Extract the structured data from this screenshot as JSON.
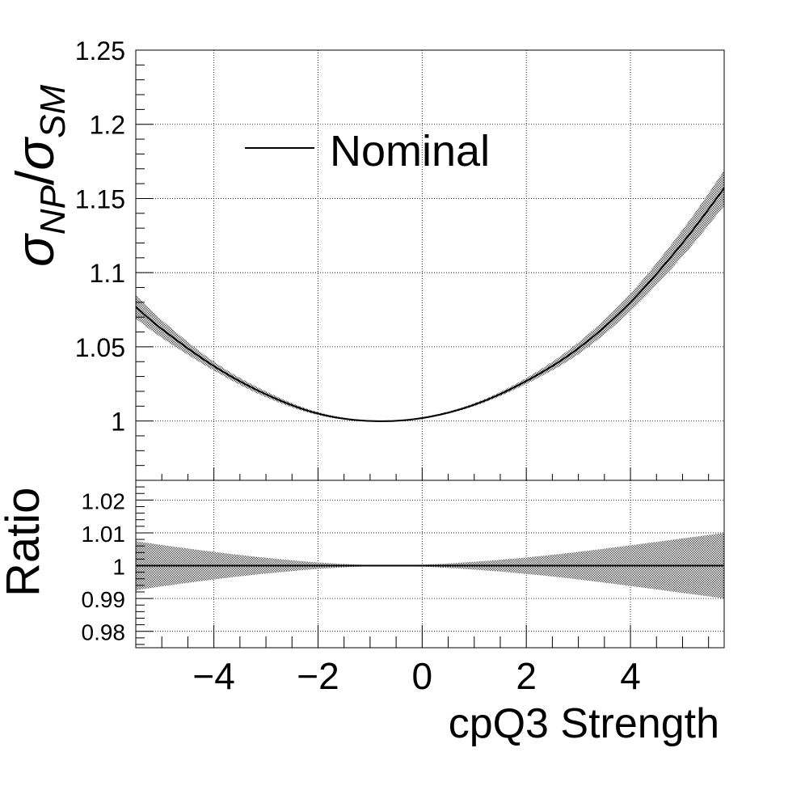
{
  "chart_data": [
    {
      "type": "line",
      "panel": "main",
      "ylabel": {
        "main": "σ",
        "sub": "NP",
        "slash": "/",
        "main2": "σ",
        "sub2": "SM"
      },
      "xlim": [
        -5.5,
        5.8
      ],
      "ylim": [
        0.96,
        1.25
      ],
      "yticks": [
        1,
        1.05,
        1.1,
        1.15,
        1.2,
        1.25
      ],
      "ytick_labels": [
        "1",
        "1.05",
        "1.1",
        "1.15",
        "1.2",
        "1.25"
      ],
      "grid": true,
      "legend": {
        "placement": "top-left",
        "entries": [
          "Nominal"
        ]
      },
      "series": [
        {
          "name": "Nominal",
          "x": [
            -5.5,
            -5,
            -4,
            -3,
            -2,
            -1,
            0,
            1,
            2,
            3,
            4,
            5,
            5.8
          ],
          "y": [
            1.077,
            1.062,
            1.037,
            1.018,
            1.005,
            1.0,
            1.002,
            1.011,
            1.027,
            1.049,
            1.08,
            1.12,
            1.157
          ],
          "band_halfwidth": [
            0.008,
            0.006,
            0.003,
            0.002,
            0.001,
            0.0005,
            0.0006,
            0.001,
            0.002,
            0.004,
            0.006,
            0.009,
            0.012
          ]
        }
      ]
    },
    {
      "type": "line",
      "panel": "ratio",
      "ylabel": "Ratio",
      "xlabel": "cpQ3 Strength",
      "xlim": [
        -5.5,
        5.8
      ],
      "ylim": [
        0.975,
        1.026
      ],
      "xticks": [
        -4,
        -2,
        0,
        2,
        4
      ],
      "xtick_labels": [
        "−4",
        "−2",
        "0",
        "2",
        "4"
      ],
      "yticks": [
        0.98,
        0.99,
        1,
        1.01,
        1.02
      ],
      "ytick_labels": [
        "0.98",
        "0.99",
        "1",
        "1.01",
        "1.02"
      ],
      "grid": true,
      "series": [
        {
          "x": [
            -5.5,
            -5,
            -4,
            -3,
            -2,
            -1,
            0,
            1,
            2,
            3,
            4,
            5,
            5.8
          ],
          "y": [
            1,
            1,
            1,
            1,
            1,
            1,
            1,
            1,
            1,
            1,
            1,
            1,
            1
          ],
          "band_halfwidth": [
            0.0075,
            0.0063,
            0.0042,
            0.0024,
            0.001,
            0.0002,
            0.0003,
            0.0012,
            0.0025,
            0.0042,
            0.0062,
            0.0083,
            0.01
          ]
        }
      ]
    }
  ]
}
